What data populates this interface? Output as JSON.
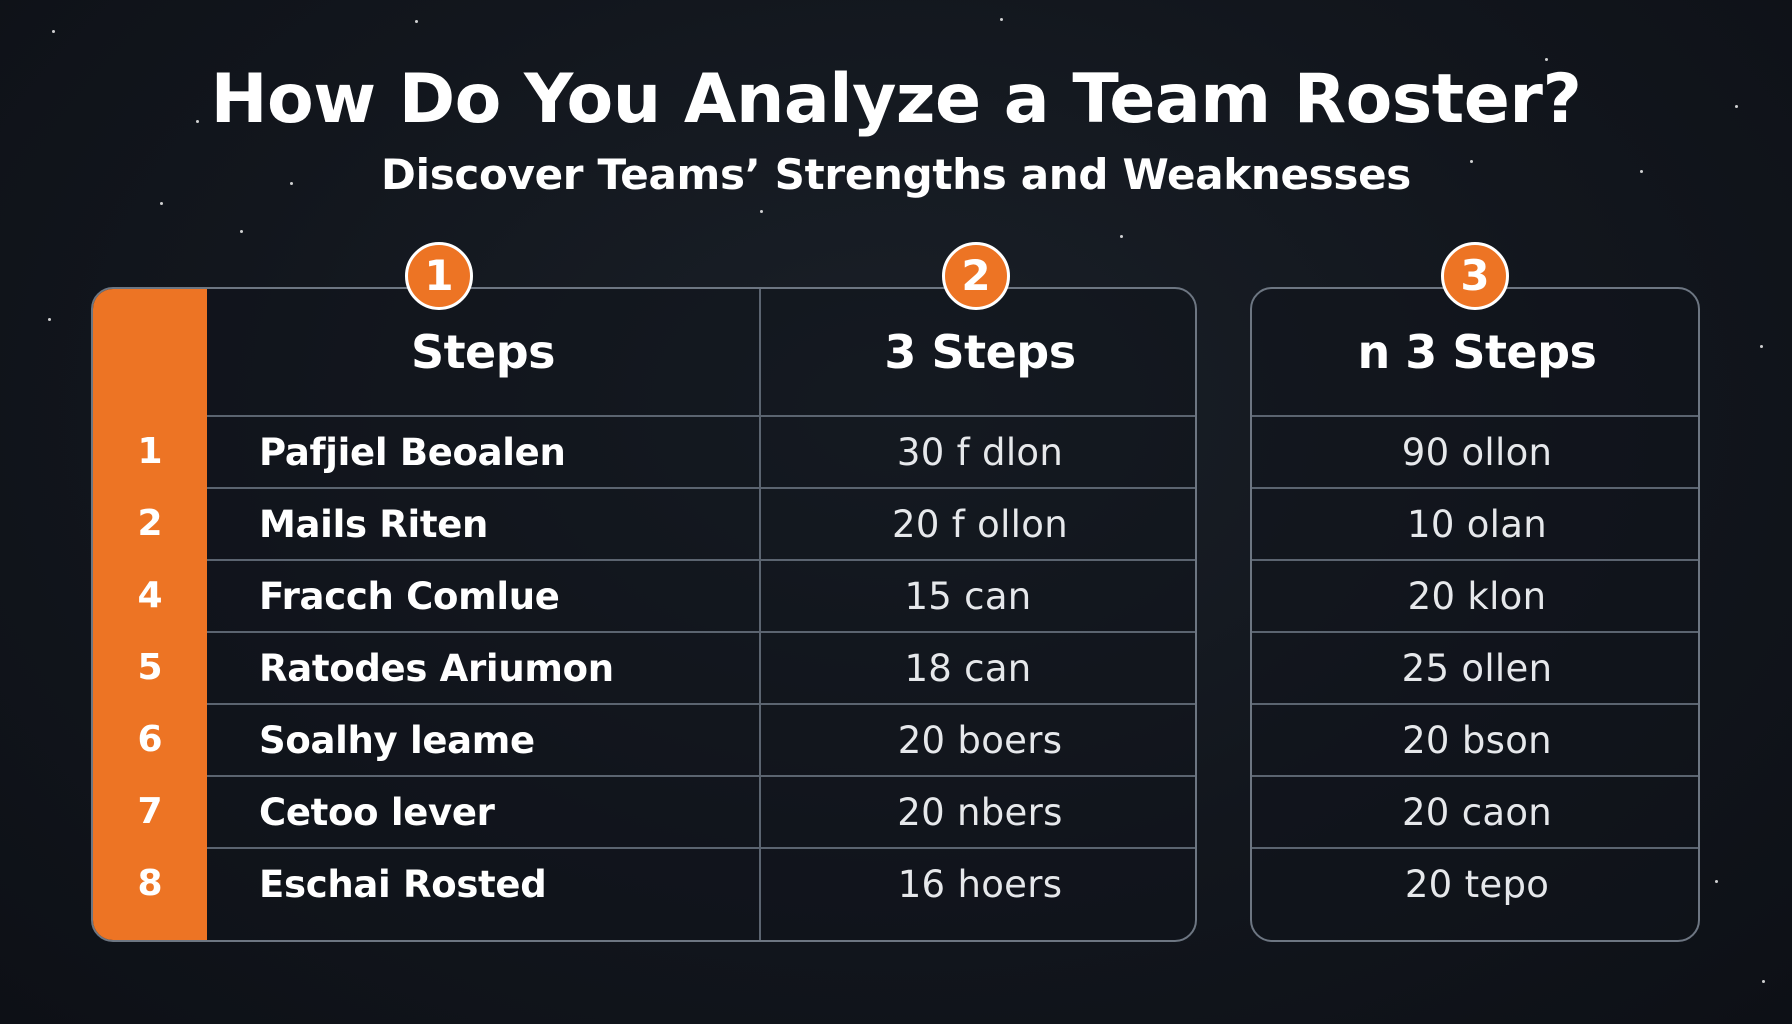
{
  "title": "How Do You Analyze a Team Roster?",
  "subtitle": "Discover Teams’ Strengths and Weaknesses",
  "badges": [
    "1",
    "2",
    "3"
  ],
  "columns": [
    "Steps",
    "3 Steps",
    "n 3 Steps"
  ],
  "rows": [
    {
      "num": "1",
      "name": "Pafjiel Beoalen",
      "col2": "30 f dlon",
      "col3": "90 ollon"
    },
    {
      "num": "2",
      "name": "Mails Riten",
      "col2": "20 f ollon",
      "col3": "10 olan"
    },
    {
      "num": "4",
      "name": "Fracch Comlue",
      "col2": "15 can",
      "col3": "20 klon"
    },
    {
      "num": "5",
      "name": "Ratodes Ariumon",
      "col2": "18 can",
      "col3": "25 ollen"
    },
    {
      "num": "6",
      "name": "Soalhy leame",
      "col2": "20 boers",
      "col3": "20 bson"
    },
    {
      "num": "7",
      "name": "Cetoo lever",
      "col2": "20 nbers",
      "col3": "20 caon"
    },
    {
      "num": "8",
      "name": "Eschai Rosted",
      "col2": "16 hoers",
      "col3": "20 tepo"
    }
  ],
  "colors": {
    "accent": "#ed7424",
    "background": "#12161d",
    "grid": "#5b6470"
  }
}
